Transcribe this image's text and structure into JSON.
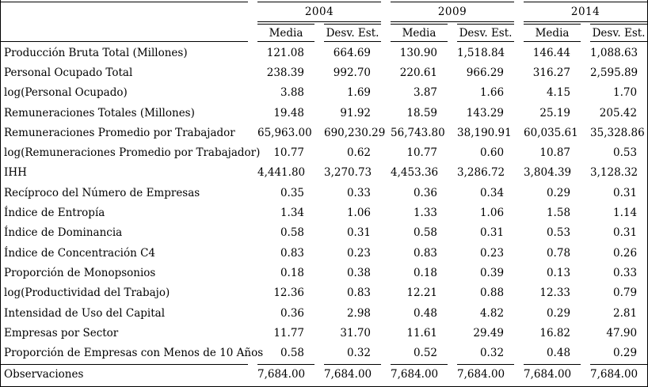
{
  "colors": {
    "background": "#ffffff",
    "text": "#000000",
    "rule": "#000000"
  },
  "table": {
    "year_headers": [
      "2004",
      "2009",
      "2014"
    ],
    "stat_headers": [
      "Media",
      "Desv. Est."
    ],
    "rows": [
      {
        "label": "Producción Bruta Total (Millones)",
        "values": [
          "121.08",
          "664.69",
          "130.90",
          "1,518.84",
          "146.44",
          "1,088.63"
        ]
      },
      {
        "label": "Personal Ocupado Total",
        "values": [
          "238.39",
          "992.70",
          "220.61",
          "966.29",
          "316.27",
          "2,595.89"
        ]
      },
      {
        "label": "log(Personal Ocupado)",
        "values": [
          "3.88",
          "1.69",
          "3.87",
          "1.66",
          "4.15",
          "1.70"
        ]
      },
      {
        "label": "Remuneraciones Totales (Millones)",
        "values": [
          "19.48",
          "91.92",
          "18.59",
          "143.29",
          "25.19",
          "205.42"
        ]
      },
      {
        "label": "Remuneraciones Promedio por Trabajador",
        "values": [
          "65,963.00",
          "690,230.29",
          "56,743.80",
          "38,190.91",
          "60,035.61",
          "35,328.86"
        ]
      },
      {
        "label": "log(Remuneraciones Promedio por Trabajador)",
        "values": [
          "10.77",
          "0.62",
          "10.77",
          "0.60",
          "10.87",
          "0.53"
        ]
      },
      {
        "label": "IHH",
        "values": [
          "4,441.80",
          "3,270.73",
          "4,453.36",
          "3,286.72",
          "3,804.39",
          "3,128.32"
        ]
      },
      {
        "label": "Recíproco del Número de Empresas",
        "values": [
          "0.35",
          "0.33",
          "0.36",
          "0.34",
          "0.29",
          "0.31"
        ]
      },
      {
        "label": "Índice de Entropía",
        "values": [
          "1.34",
          "1.06",
          "1.33",
          "1.06",
          "1.58",
          "1.14"
        ]
      },
      {
        "label": "Índice de Dominancia",
        "values": [
          "0.58",
          "0.31",
          "0.58",
          "0.31",
          "0.53",
          "0.31"
        ]
      },
      {
        "label": "Índice de Concentración C4",
        "values": [
          "0.83",
          "0.23",
          "0.83",
          "0.23",
          "0.78",
          "0.26"
        ]
      },
      {
        "label": "Proporción de Monopsonios",
        "values": [
          "0.18",
          "0.38",
          "0.18",
          "0.39",
          "0.13",
          "0.33"
        ]
      },
      {
        "label": "log(Productividad del Trabajo)",
        "values": [
          "12.36",
          "0.83",
          "12.21",
          "0.88",
          "12.33",
          "0.79"
        ]
      },
      {
        "label": "Intensidad de Uso del Capital",
        "values": [
          "0.36",
          "2.98",
          "0.48",
          "4.82",
          "0.29",
          "2.81"
        ]
      },
      {
        "label": "Empresas por Sector",
        "values": [
          "11.77",
          "31.70",
          "11.61",
          "29.49",
          "16.82",
          "47.90"
        ]
      },
      {
        "label": "Proporción de Empresas con Menos de 10 Años",
        "values": [
          "0.58",
          "0.32",
          "0.52",
          "0.32",
          "0.48",
          "0.29"
        ]
      }
    ],
    "footer": {
      "label": "Observaciones",
      "values": [
        "7,684.00",
        "7,684.00",
        "7,684.00",
        "7,684.00",
        "7,684.00",
        "7,684.00"
      ]
    }
  }
}
